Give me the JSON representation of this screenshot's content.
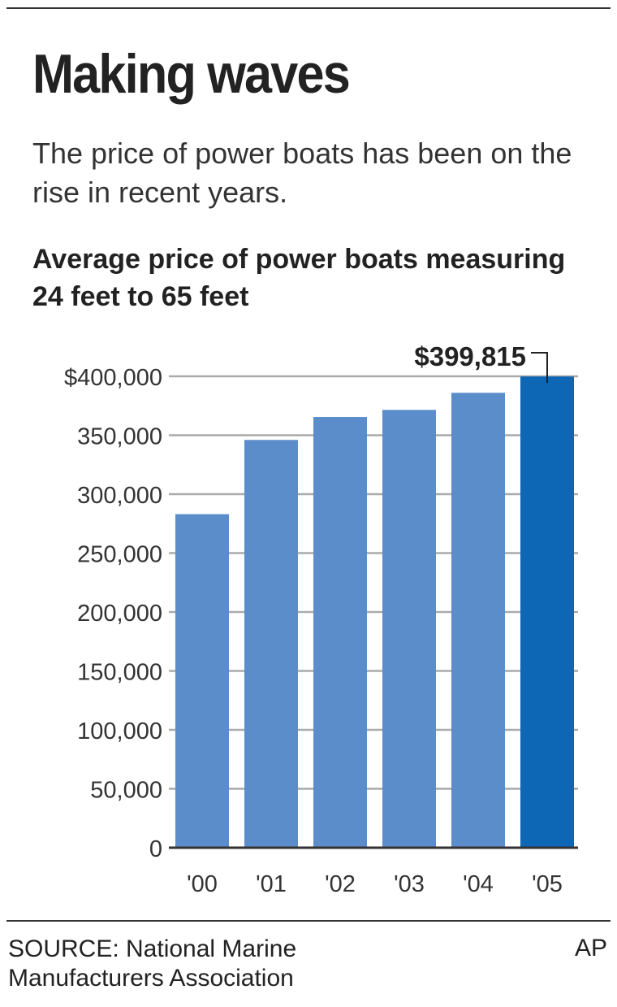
{
  "headline": "Making waves",
  "subhead": "The price of power boats has been on the rise in recent years.",
  "chart_data": {
    "type": "bar",
    "title": "Average price of power boats measuring 24 feet to 65 feet",
    "categories": [
      "'00",
      "'01",
      "'02",
      "'03",
      "'04",
      "'05"
    ],
    "values": [
      283000,
      346000,
      365500,
      371500,
      386000,
      399815
    ],
    "ylim": [
      0,
      400000
    ],
    "yticks": [
      0,
      50000,
      100000,
      150000,
      200000,
      250000,
      300000,
      350000,
      400000
    ],
    "ytick_labels": [
      "0",
      "50,000",
      "100,000",
      "150,000",
      "200,000",
      "250,000",
      "300,000",
      "350,000",
      "$400,000"
    ],
    "annotation": "$399,815",
    "grid": true,
    "colors": {
      "bar": "#5b8dcb",
      "highlight": "#0d67b5",
      "grid": "#aaaaaa"
    }
  },
  "source": "SOURCE: National Marine Manufacturers Association",
  "credit": "AP"
}
